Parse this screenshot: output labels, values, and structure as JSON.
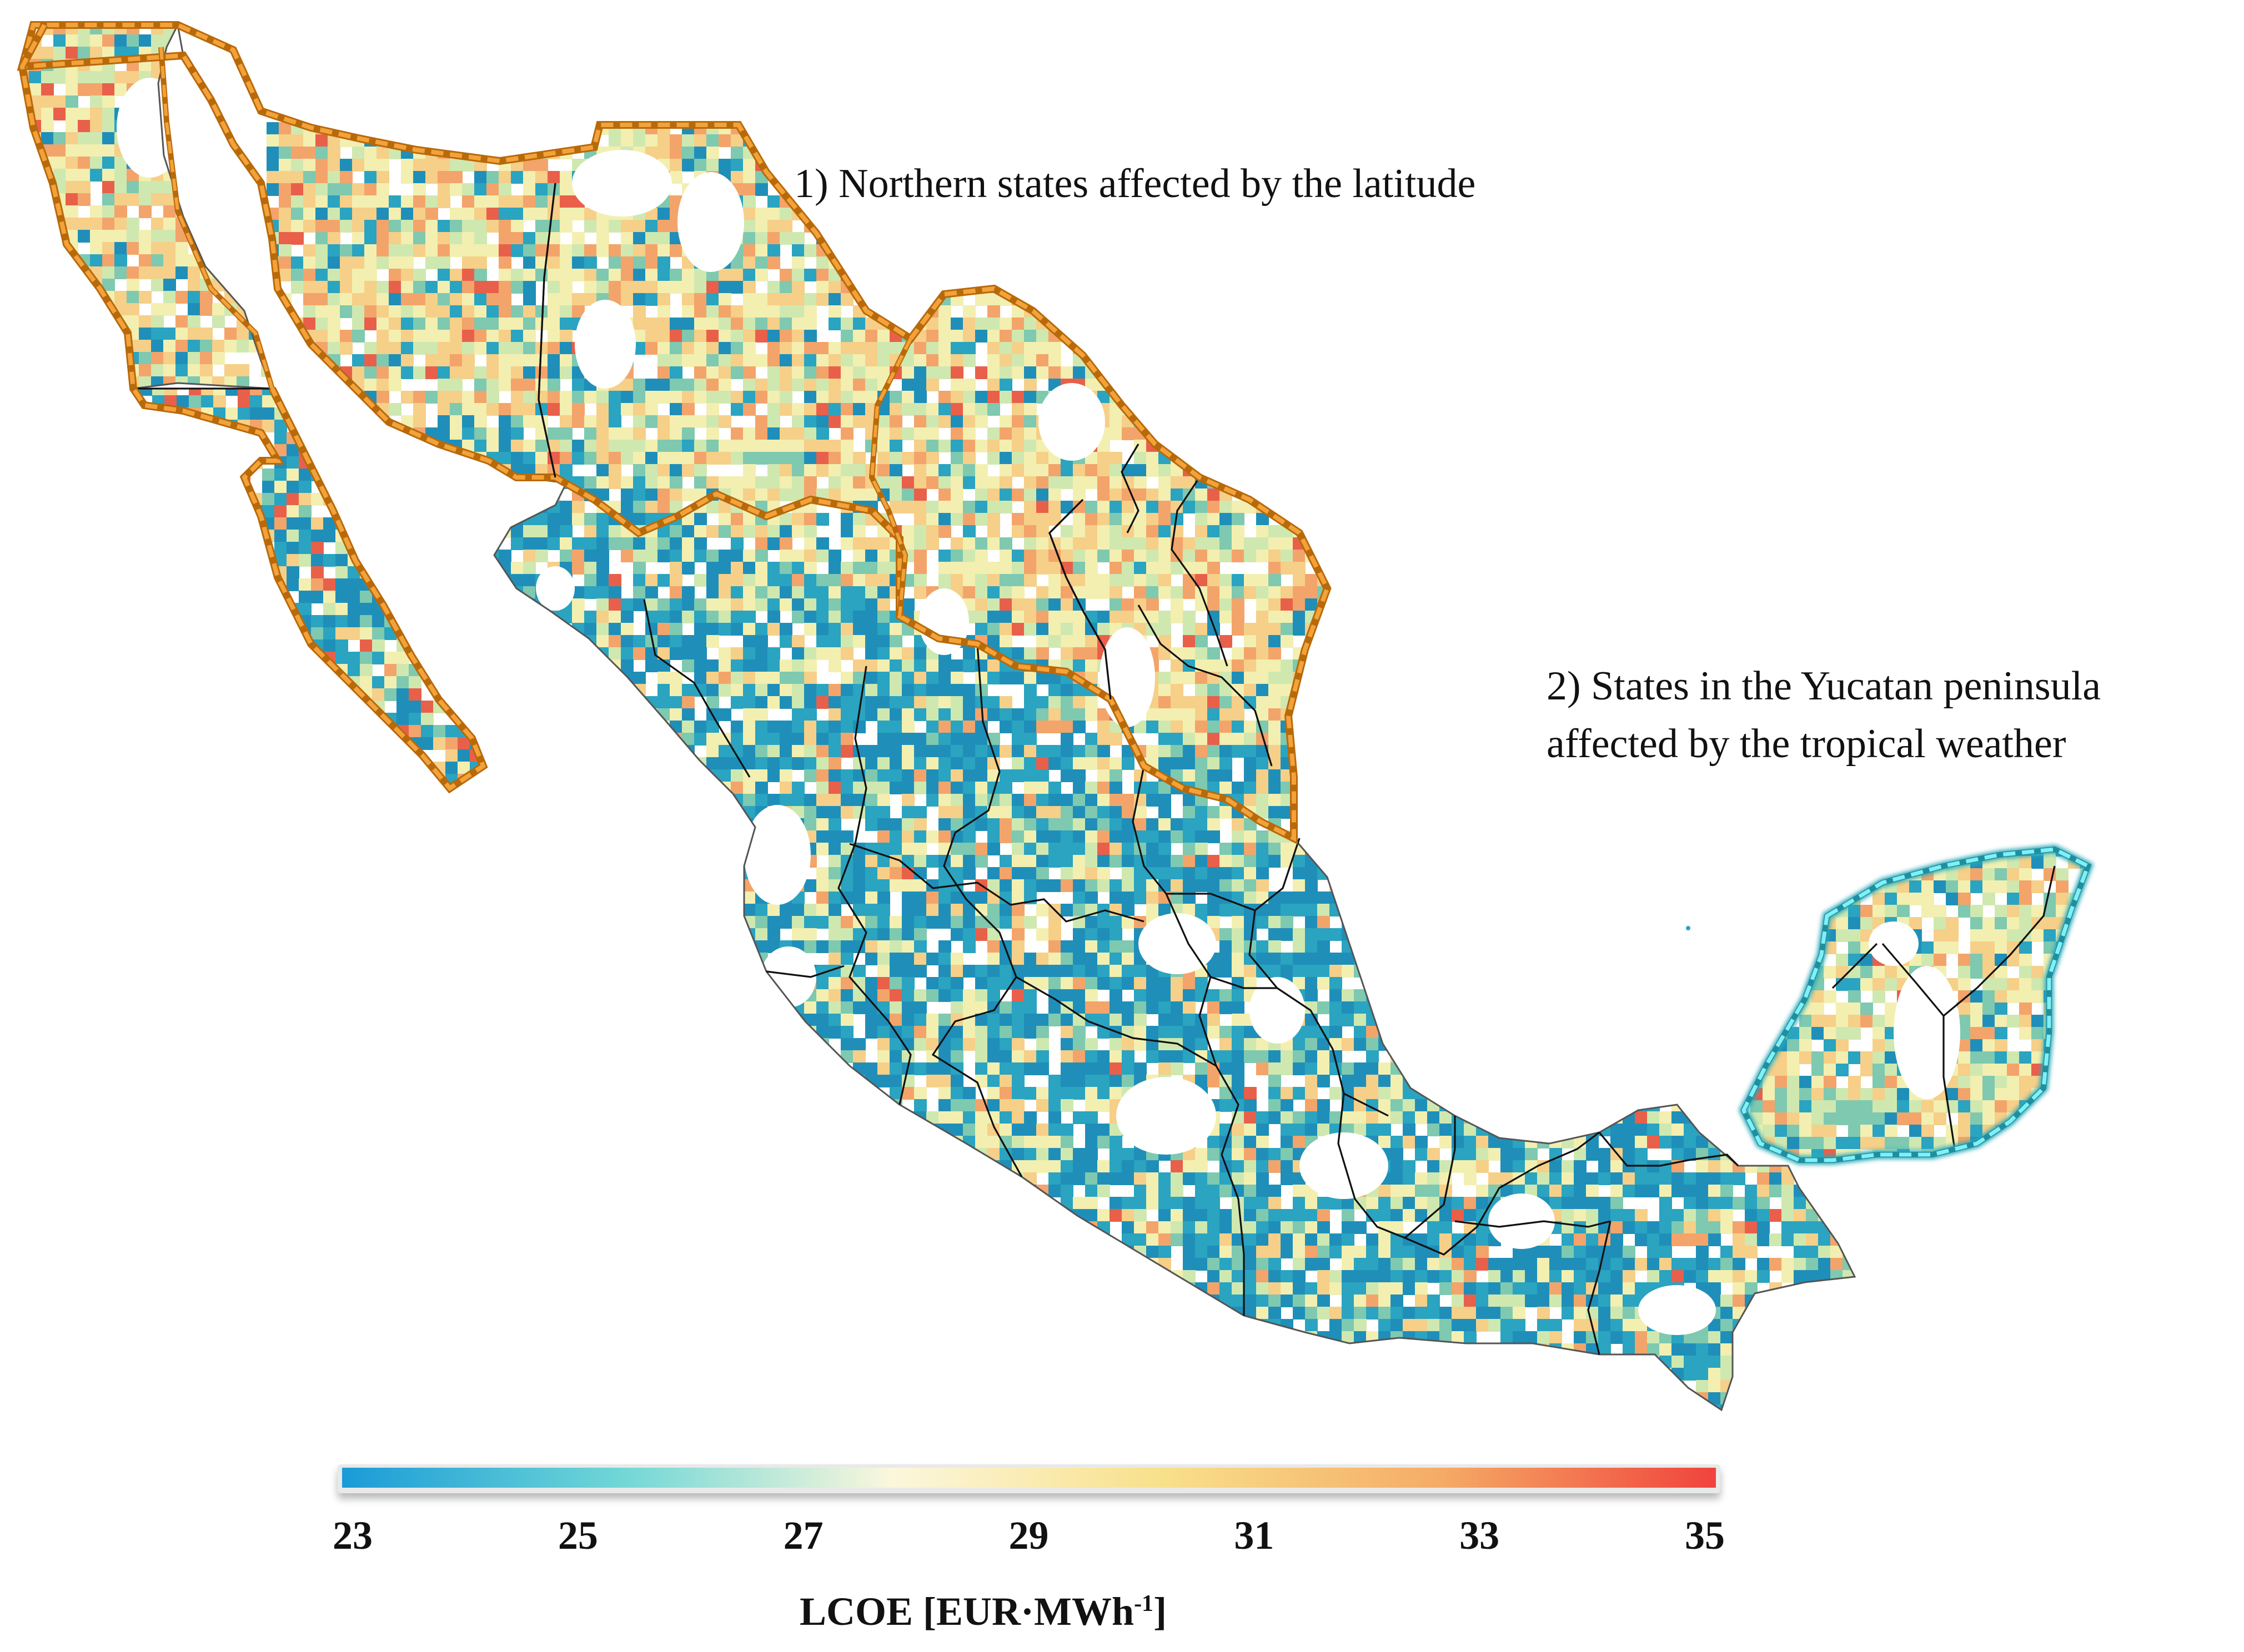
{
  "annotations": {
    "northern": "1) Northern states affected by the latitude",
    "yucatan_line1": "2) States in the Yucatan peninsula",
    "yucatan_line2": "affected by the tropical weather"
  },
  "legend": {
    "label_main": "LCOE [EUR·MWh",
    "label_sup": "-1",
    "label_close": "]",
    "ticks": [
      "23",
      "25",
      "27",
      "29",
      "31",
      "33",
      "35"
    ],
    "min": 23,
    "max": 35,
    "colors": [
      "#1a9bd7",
      "#6fd6d6",
      "#fbf7dc",
      "#f8e08a",
      "#f5ab66",
      "#f0433d"
    ]
  },
  "highlight_colors": {
    "northern_states": "#d98a1a",
    "yucatan_states": "#34d3dc"
  },
  "pixel_colors": [
    "#1f8fb9",
    "#2aa4c0",
    "#7ec9b0",
    "#cfe8b0",
    "#f3efb0",
    "#f6cf88",
    "#f3a46a",
    "#e8604a"
  ]
}
